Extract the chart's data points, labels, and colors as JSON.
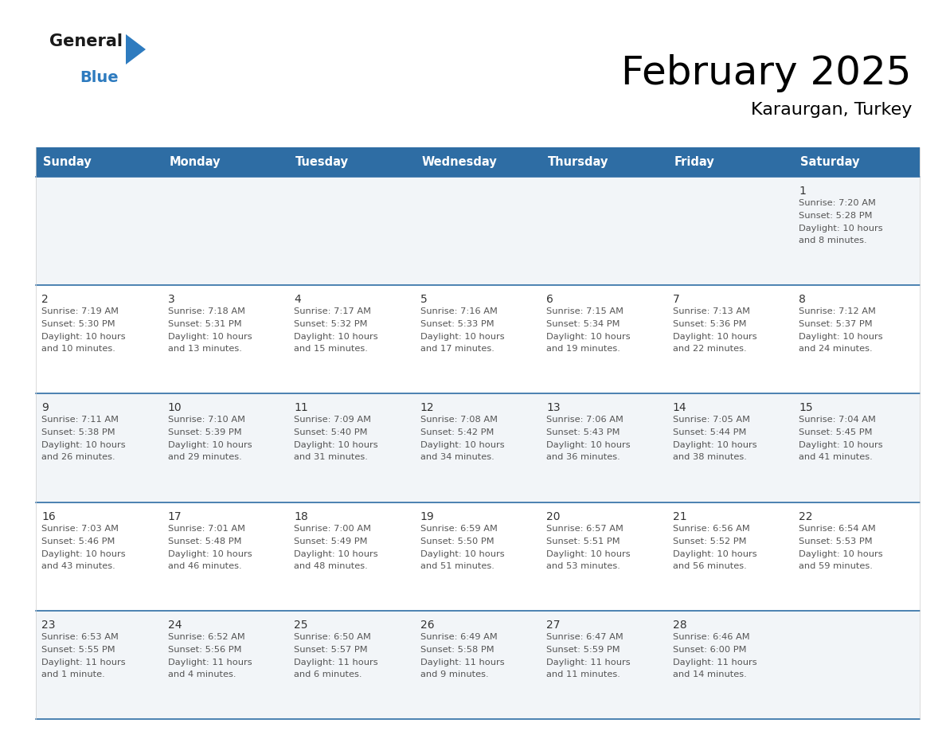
{
  "title": "February 2025",
  "subtitle": "Karaurgan, Turkey",
  "header_bg": "#2e6da4",
  "header_text_color": "#ffffff",
  "days_of_week": [
    "Sunday",
    "Monday",
    "Tuesday",
    "Wednesday",
    "Thursday",
    "Friday",
    "Saturday"
  ],
  "cell_bg_odd": "#f2f5f8",
  "cell_bg_even": "#ffffff",
  "cell_border_color": "#2e6da4",
  "text_color": "#555555",
  "day_num_color": "#333333",
  "logo_black": "#1a1a1a",
  "logo_blue": "#2e7bbf",
  "triangle_color": "#2e7bbf",
  "calendar_data": [
    [
      {
        "day": null,
        "sunrise": null,
        "sunset": null,
        "daylight": null
      },
      {
        "day": null,
        "sunrise": null,
        "sunset": null,
        "daylight": null
      },
      {
        "day": null,
        "sunrise": null,
        "sunset": null,
        "daylight": null
      },
      {
        "day": null,
        "sunrise": null,
        "sunset": null,
        "daylight": null
      },
      {
        "day": null,
        "sunrise": null,
        "sunset": null,
        "daylight": null
      },
      {
        "day": null,
        "sunrise": null,
        "sunset": null,
        "daylight": null
      },
      {
        "day": 1,
        "sunrise": "7:20 AM",
        "sunset": "5:28 PM",
        "daylight": "10 hours\nand 8 minutes."
      }
    ],
    [
      {
        "day": 2,
        "sunrise": "7:19 AM",
        "sunset": "5:30 PM",
        "daylight": "10 hours\nand 10 minutes."
      },
      {
        "day": 3,
        "sunrise": "7:18 AM",
        "sunset": "5:31 PM",
        "daylight": "10 hours\nand 13 minutes."
      },
      {
        "day": 4,
        "sunrise": "7:17 AM",
        "sunset": "5:32 PM",
        "daylight": "10 hours\nand 15 minutes."
      },
      {
        "day": 5,
        "sunrise": "7:16 AM",
        "sunset": "5:33 PM",
        "daylight": "10 hours\nand 17 minutes."
      },
      {
        "day": 6,
        "sunrise": "7:15 AM",
        "sunset": "5:34 PM",
        "daylight": "10 hours\nand 19 minutes."
      },
      {
        "day": 7,
        "sunrise": "7:13 AM",
        "sunset": "5:36 PM",
        "daylight": "10 hours\nand 22 minutes."
      },
      {
        "day": 8,
        "sunrise": "7:12 AM",
        "sunset": "5:37 PM",
        "daylight": "10 hours\nand 24 minutes."
      }
    ],
    [
      {
        "day": 9,
        "sunrise": "7:11 AM",
        "sunset": "5:38 PM",
        "daylight": "10 hours\nand 26 minutes."
      },
      {
        "day": 10,
        "sunrise": "7:10 AM",
        "sunset": "5:39 PM",
        "daylight": "10 hours\nand 29 minutes."
      },
      {
        "day": 11,
        "sunrise": "7:09 AM",
        "sunset": "5:40 PM",
        "daylight": "10 hours\nand 31 minutes."
      },
      {
        "day": 12,
        "sunrise": "7:08 AM",
        "sunset": "5:42 PM",
        "daylight": "10 hours\nand 34 minutes."
      },
      {
        "day": 13,
        "sunrise": "7:06 AM",
        "sunset": "5:43 PM",
        "daylight": "10 hours\nand 36 minutes."
      },
      {
        "day": 14,
        "sunrise": "7:05 AM",
        "sunset": "5:44 PM",
        "daylight": "10 hours\nand 38 minutes."
      },
      {
        "day": 15,
        "sunrise": "7:04 AM",
        "sunset": "5:45 PM",
        "daylight": "10 hours\nand 41 minutes."
      }
    ],
    [
      {
        "day": 16,
        "sunrise": "7:03 AM",
        "sunset": "5:46 PM",
        "daylight": "10 hours\nand 43 minutes."
      },
      {
        "day": 17,
        "sunrise": "7:01 AM",
        "sunset": "5:48 PM",
        "daylight": "10 hours\nand 46 minutes."
      },
      {
        "day": 18,
        "sunrise": "7:00 AM",
        "sunset": "5:49 PM",
        "daylight": "10 hours\nand 48 minutes."
      },
      {
        "day": 19,
        "sunrise": "6:59 AM",
        "sunset": "5:50 PM",
        "daylight": "10 hours\nand 51 minutes."
      },
      {
        "day": 20,
        "sunrise": "6:57 AM",
        "sunset": "5:51 PM",
        "daylight": "10 hours\nand 53 minutes."
      },
      {
        "day": 21,
        "sunrise": "6:56 AM",
        "sunset": "5:52 PM",
        "daylight": "10 hours\nand 56 minutes."
      },
      {
        "day": 22,
        "sunrise": "6:54 AM",
        "sunset": "5:53 PM",
        "daylight": "10 hours\nand 59 minutes."
      }
    ],
    [
      {
        "day": 23,
        "sunrise": "6:53 AM",
        "sunset": "5:55 PM",
        "daylight": "11 hours\nand 1 minute."
      },
      {
        "day": 24,
        "sunrise": "6:52 AM",
        "sunset": "5:56 PM",
        "daylight": "11 hours\nand 4 minutes."
      },
      {
        "day": 25,
        "sunrise": "6:50 AM",
        "sunset": "5:57 PM",
        "daylight": "11 hours\nand 6 minutes."
      },
      {
        "day": 26,
        "sunrise": "6:49 AM",
        "sunset": "5:58 PM",
        "daylight": "11 hours\nand 9 minutes."
      },
      {
        "day": 27,
        "sunrise": "6:47 AM",
        "sunset": "5:59 PM",
        "daylight": "11 hours\nand 11 minutes."
      },
      {
        "day": 28,
        "sunrise": "6:46 AM",
        "sunset": "6:00 PM",
        "daylight": "11 hours\nand 14 minutes."
      },
      {
        "day": null,
        "sunrise": null,
        "sunset": null,
        "daylight": null
      }
    ]
  ]
}
